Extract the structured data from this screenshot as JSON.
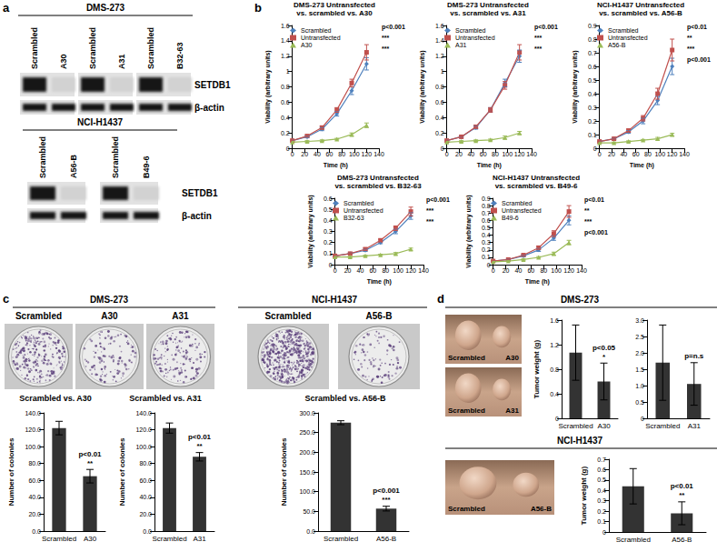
{
  "panel_labels": [
    "a",
    "b",
    "c",
    "d"
  ],
  "blots": [
    {
      "group": "DMS-273",
      "lanes": [
        [
          "Scrambled",
          "A30"
        ],
        [
          "Scrambled",
          "A31"
        ],
        [
          "Scrambled",
          "B32-63"
        ]
      ],
      "rows": [
        "SETDB1",
        "β-actin"
      ]
    },
    {
      "group": "NCI-H1437",
      "lanes": [
        [
          "Scrambled",
          "A56-B"
        ],
        [
          "Scrambled",
          "B49-6"
        ]
      ],
      "rows": [
        "SETDB1",
        "β-actin"
      ]
    }
  ],
  "plates": [
    {
      "group": "DMS-273",
      "labels": [
        "Scrambled",
        "A30",
        "A31"
      ]
    },
    {
      "group": "NCI-H1437",
      "labels": [
        "Scrambled",
        "A56-B"
      ]
    }
  ],
  "tumor_photos": [
    {
      "group": "DMS-273",
      "images": [
        [
          "Scrambled",
          "A30"
        ],
        [
          "Scrambled",
          "A31"
        ]
      ]
    },
    {
      "group": "NCI-H1437",
      "images": [
        [
          "Scrambled",
          "A56-B"
        ]
      ]
    }
  ],
  "chart_data": [
    {
      "type": "line",
      "title": "DMS-273 Untransfected\nvs. scrambled vs. A30",
      "xlabel": "Time (h)",
      "ylabel": "Viability (arbitrary units)",
      "x": [
        0,
        24,
        48,
        72,
        96,
        120
      ],
      "xlim": [
        0,
        140
      ],
      "xticks": [
        0,
        20,
        40,
        60,
        80,
        100,
        120,
        140
      ],
      "ylim": [
        0,
        1.6
      ],
      "yticks": [
        0,
        0.2,
        0.4,
        0.6,
        0.8,
        1,
        1.2,
        1.4,
        1.6
      ],
      "grid": false,
      "legend": "top-left",
      "series": [
        {
          "name": "Scrambled",
          "color": "#4f81bd",
          "marker": "diamond",
          "values": [
            0.1,
            0.15,
            0.25,
            0.45,
            0.75,
            1.1
          ],
          "errors": [
            0.01,
            0.01,
            0.02,
            0.03,
            0.05,
            0.08
          ]
        },
        {
          "name": "Untransfected",
          "color": "#c0504d",
          "marker": "square",
          "values": [
            0.1,
            0.16,
            0.27,
            0.5,
            0.85,
            1.25
          ],
          "errors": [
            0.01,
            0.01,
            0.02,
            0.03,
            0.05,
            0.1
          ]
        },
        {
          "name": "A30",
          "color": "#9bbb59",
          "marker": "triangle",
          "values": [
            0.08,
            0.09,
            0.1,
            0.12,
            0.18,
            0.3
          ],
          "errors": [
            0.01,
            0.01,
            0.01,
            0.01,
            0.02,
            0.03
          ]
        }
      ],
      "annotations": [
        "p<0.001",
        "***",
        "***"
      ]
    },
    {
      "type": "line",
      "title": "DMS-273 Untransfected\nvs. scrambled vs. A31",
      "xlabel": "Time (h)",
      "ylabel": "Viability (arbitrary units)",
      "x": [
        0,
        24,
        48,
        72,
        96,
        120
      ],
      "xlim": [
        0,
        140
      ],
      "xticks": [
        0,
        20,
        40,
        60,
        80,
        100,
        120,
        140
      ],
      "ylim": [
        0,
        1.6
      ],
      "yticks": [
        0,
        0.2,
        0.4,
        0.6,
        0.8,
        1,
        1.2,
        1.4,
        1.6
      ],
      "grid": false,
      "legend": "top-left",
      "series": [
        {
          "name": "Scrambled",
          "color": "#4f81bd",
          "marker": "diamond",
          "values": [
            0.1,
            0.15,
            0.27,
            0.5,
            0.85,
            1.2
          ],
          "errors": [
            0.01,
            0.01,
            0.02,
            0.03,
            0.05,
            0.08
          ]
        },
        {
          "name": "Untransfected",
          "color": "#c0504d",
          "marker": "square",
          "values": [
            0.1,
            0.15,
            0.28,
            0.5,
            0.82,
            1.25
          ],
          "errors": [
            0.01,
            0.01,
            0.02,
            0.03,
            0.05,
            0.1
          ]
        },
        {
          "name": "A31",
          "color": "#9bbb59",
          "marker": "triangle",
          "values": [
            0.08,
            0.09,
            0.1,
            0.11,
            0.14,
            0.2
          ],
          "errors": [
            0.01,
            0.01,
            0.01,
            0.01,
            0.02,
            0.02
          ]
        }
      ],
      "annotations": [
        "p<0.001",
        "***",
        "***"
      ]
    },
    {
      "type": "line",
      "title": "NCI-H1437 Untransfected\nvs. scrambled vs. A56-B",
      "xlabel": "Time (h)",
      "ylabel": "Viability (arbitrary units)",
      "x": [
        0,
        24,
        48,
        72,
        96,
        120
      ],
      "xlim": [
        0,
        140
      ],
      "xticks": [
        0,
        20,
        40,
        60,
        80,
        100,
        120,
        140
      ],
      "ylim": [
        0,
        0.9
      ],
      "yticks": [
        0,
        0.1,
        0.2,
        0.3,
        0.4,
        0.5,
        0.6,
        0.7,
        0.8,
        0.9
      ],
      "grid": false,
      "legend": "top-left",
      "series": [
        {
          "name": "Scrambled",
          "color": "#4f81bd",
          "marker": "diamond",
          "values": [
            0.05,
            0.07,
            0.12,
            0.2,
            0.35,
            0.6
          ],
          "errors": [
            0.005,
            0.005,
            0.01,
            0.02,
            0.03,
            0.06
          ]
        },
        {
          "name": "Untransfected",
          "color": "#c0504d",
          "marker": "square",
          "values": [
            0.05,
            0.07,
            0.13,
            0.22,
            0.4,
            0.72
          ],
          "errors": [
            0.005,
            0.005,
            0.01,
            0.02,
            0.04,
            0.08
          ]
        },
        {
          "name": "A56-B",
          "color": "#9bbb59",
          "marker": "triangle",
          "values": [
            0.04,
            0.04,
            0.05,
            0.06,
            0.07,
            0.1
          ],
          "errors": [
            0.005,
            0.005,
            0.005,
            0.005,
            0.01,
            0.01
          ]
        }
      ],
      "annotations": [
        "p<0.01",
        "**",
        "***",
        "p<0.001"
      ]
    },
    {
      "type": "line",
      "title": "DMS-273 Untransfected\nvs. scrambled vs. B32-63",
      "xlabel": "Time (h)",
      "ylabel": "Viability (arbitrary units)",
      "x": [
        0,
        24,
        48,
        72,
        96,
        120
      ],
      "xlim": [
        0,
        140
      ],
      "xticks": [
        0,
        20,
        40,
        60,
        80,
        100,
        120,
        140
      ],
      "ylim": [
        0,
        0.6
      ],
      "yticks": [
        0,
        0.1,
        0.2,
        0.3,
        0.4,
        0.5,
        0.6
      ],
      "grid": false,
      "legend": "top-left",
      "series": [
        {
          "name": "Scrambled",
          "color": "#4f81bd",
          "marker": "diamond",
          "values": [
            0.08,
            0.1,
            0.13,
            0.2,
            0.3,
            0.44
          ],
          "errors": [
            0.005,
            0.005,
            0.01,
            0.01,
            0.02,
            0.03
          ]
        },
        {
          "name": "Untransfected",
          "color": "#c0504d",
          "marker": "square",
          "values": [
            0.08,
            0.1,
            0.14,
            0.22,
            0.33,
            0.48
          ],
          "errors": [
            0.005,
            0.005,
            0.01,
            0.01,
            0.02,
            0.04
          ]
        },
        {
          "name": "B32-63",
          "color": "#9bbb59",
          "marker": "triangle",
          "values": [
            0.07,
            0.07,
            0.08,
            0.09,
            0.1,
            0.14
          ],
          "errors": [
            0.005,
            0.005,
            0.005,
            0.005,
            0.01,
            0.01
          ]
        }
      ],
      "annotations": [
        "p<0.001",
        "***",
        "***"
      ]
    },
    {
      "type": "line",
      "title": "NCI-H1437 Untransfected\nvs. scrambled vs. B49-6",
      "xlabel": "Time (h)",
      "ylabel": "Viability (arbitrary units)",
      "x": [
        0,
        24,
        48,
        72,
        96,
        120
      ],
      "xlim": [
        0,
        140
      ],
      "xticks": [
        0,
        20,
        40,
        60,
        80,
        100,
        120,
        140
      ],
      "ylim": [
        0,
        0.9
      ],
      "yticks": [
        0,
        0.1,
        0.2,
        0.3,
        0.4,
        0.5,
        0.6,
        0.7,
        0.8,
        0.9
      ],
      "grid": false,
      "legend": "top-left",
      "series": [
        {
          "name": "Scrambled",
          "color": "#4f81bd",
          "marker": "diamond",
          "values": [
            0.05,
            0.07,
            0.12,
            0.2,
            0.36,
            0.6
          ],
          "errors": [
            0.005,
            0.005,
            0.01,
            0.02,
            0.03,
            0.06
          ]
        },
        {
          "name": "Untransfected",
          "color": "#c0504d",
          "marker": "square",
          "values": [
            0.05,
            0.07,
            0.13,
            0.23,
            0.42,
            0.72
          ],
          "errors": [
            0.005,
            0.005,
            0.01,
            0.02,
            0.04,
            0.08
          ]
        },
        {
          "name": "B49-6",
          "color": "#9bbb59",
          "marker": "triangle",
          "values": [
            0.04,
            0.05,
            0.07,
            0.1,
            0.15,
            0.3
          ],
          "errors": [
            0.005,
            0.005,
            0.01,
            0.01,
            0.02,
            0.03
          ]
        }
      ],
      "annotations": [
        "p<0.01",
        "**",
        "***",
        "p<0.001"
      ]
    },
    {
      "type": "bar",
      "title": "Scrambled vs. A30",
      "ylabel": "Number of colonies",
      "categories": [
        "Scrambled",
        "A30"
      ],
      "values": [
        122,
        65
      ],
      "errors": [
        8,
        8
      ],
      "color": "#333333",
      "ylim": [
        0,
        140
      ],
      "yticks": [
        {
          "value": 0,
          "label": "0.0"
        },
        {
          "value": 20,
          "label": "20.0"
        },
        {
          "value": 40,
          "label": "40.0"
        },
        {
          "value": 60,
          "label": "60.0"
        },
        {
          "value": 80,
          "label": "80.0"
        },
        {
          "value": 100,
          "label": "100.0"
        },
        {
          "value": 120,
          "label": "120.0"
        },
        {
          "value": 140,
          "label": "140.0"
        }
      ],
      "grid": false,
      "annotations": [
        "p<0.01",
        "**"
      ]
    },
    {
      "type": "bar",
      "title": "Scrambled vs. A31",
      "ylabel": "Number of colonies",
      "categories": [
        "Scrambled",
        "A31"
      ],
      "values": [
        122,
        88
      ],
      "errors": [
        6,
        5
      ],
      "color": "#333333",
      "ylim": [
        0,
        140
      ],
      "yticks": [
        {
          "value": 0,
          "label": "0.0"
        },
        {
          "value": 20,
          "label": "20.0"
        },
        {
          "value": 40,
          "label": "40.0"
        },
        {
          "value": 60,
          "label": "60.0"
        },
        {
          "value": 80,
          "label": "80.0"
        },
        {
          "value": 100,
          "label": "100.0"
        },
        {
          "value": 120,
          "label": "120.0"
        },
        {
          "value": 140,
          "label": "140.0"
        }
      ],
      "grid": false,
      "annotations": [
        "p<0.01",
        "**"
      ]
    },
    {
      "type": "bar",
      "title": "Scrambled vs. A56-B",
      "ylabel": "Number of colonies",
      "categories": [
        "Scrambled",
        "A56-B"
      ],
      "values": [
        275,
        57
      ],
      "errors": [
        5,
        6
      ],
      "color": "#333333",
      "ylim": [
        0,
        300
      ],
      "yticks": [
        {
          "value": 0,
          "label": "0.0"
        },
        {
          "value": 50,
          "label": "50.0"
        },
        {
          "value": 100,
          "label": "100.0"
        },
        {
          "value": 150,
          "label": "150.0"
        },
        {
          "value": 200,
          "label": "200.0"
        },
        {
          "value": 250,
          "label": "250.0"
        },
        {
          "value": 300,
          "label": "300.0"
        }
      ],
      "grid": false,
      "annotations": [
        "p<0.001",
        "***"
      ]
    },
    {
      "type": "bar",
      "ylabel": "Tumor weight (g)",
      "categories": [
        "Scrambled",
        "A30"
      ],
      "values": [
        1.07,
        0.6
      ],
      "errors": [
        0.45,
        0.3
      ],
      "color": "#333333",
      "ylim": [
        0,
        1.6
      ],
      "yticks": [
        0,
        0.4,
        0.8,
        1.2,
        1.6
      ],
      "grid": false,
      "annotations": [
        "p<0.05",
        "*"
      ]
    },
    {
      "type": "bar",
      "categories": [
        "Scrambled",
        "A31"
      ],
      "values": [
        1.7,
        1.05
      ],
      "errors": [
        1.15,
        0.65
      ],
      "color": "#333333",
      "ylim": [
        0,
        3
      ],
      "yticks": [
        0,
        0.5,
        {
          "value": 1,
          "label": "1.0"
        },
        1.5,
        {
          "value": 2,
          "label": "2.0"
        },
        2.5,
        {
          "value": 3,
          "label": "3.0"
        }
      ],
      "grid": false,
      "annotations": [
        "p=n.s"
      ]
    },
    {
      "type": "bar",
      "ylabel": "Tumor weight (g)",
      "categories": [
        "Scrambled",
        "A56-B"
      ],
      "values": [
        0.44,
        0.18
      ],
      "errors": [
        0.17,
        0.11
      ],
      "color": "#333333",
      "ylim": [
        0,
        0.7
      ],
      "yticks": [
        0,
        0.1,
        0.2,
        0.3,
        0.4,
        0.5,
        0.6,
        0.7
      ],
      "grid": false,
      "annotations": [
        "p<0.01",
        "**"
      ]
    }
  ]
}
